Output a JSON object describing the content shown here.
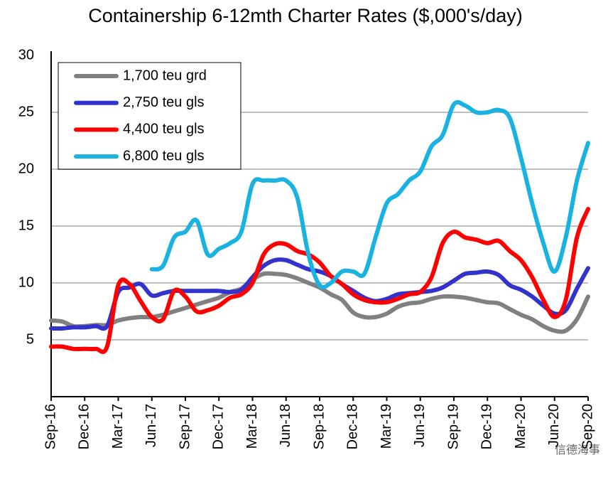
{
  "chart_data": {
    "type": "line",
    "title": "Containership 6-12mth Charter Rates ($,000's/day)",
    "categories": [
      "Sep-16",
      null,
      null,
      "Dec-16",
      null,
      null,
      "Mar-17",
      null,
      null,
      "Jun-17",
      null,
      null,
      "Sep-17",
      null,
      null,
      "Dec-17",
      null,
      null,
      "Mar-18",
      null,
      null,
      "Jun-18",
      null,
      null,
      "Sep-18",
      null,
      null,
      "Dec-18",
      null,
      null,
      "Mar-19",
      null,
      null,
      "Jun-19",
      null,
      null,
      "Sep-19",
      null,
      null,
      "Dec-19",
      null,
      null,
      "Mar-20",
      null,
      null,
      "Jun-20",
      null,
      null,
      "Sep-20"
    ],
    "series": [
      {
        "name": "1,700 teu grd",
        "color": "#808080",
        "values": [
          6.7,
          6.6,
          6.2,
          6.2,
          6.3,
          6.3,
          6.7,
          6.9,
          7.0,
          7.0,
          7.2,
          7.5,
          7.8,
          8.1,
          8.4,
          8.7,
          9.2,
          9.5,
          10.3,
          10.8,
          10.8,
          10.7,
          10.4,
          10.0,
          9.6,
          9.0,
          8.5,
          7.4,
          7.0,
          7.0,
          7.3,
          7.9,
          8.2,
          8.3,
          8.6,
          8.8,
          8.8,
          8.7,
          8.5,
          8.3,
          8.2,
          7.7,
          7.2,
          6.8,
          6.2,
          5.8,
          5.8,
          6.8,
          8.8
        ]
      },
      {
        "name": "2,750 teu gls",
        "color": "#3333cc",
        "values": [
          6.0,
          6.0,
          6.1,
          6.1,
          6.2,
          6.2,
          9.2,
          9.6,
          9.9,
          8.9,
          9.1,
          9.3,
          9.3,
          9.3,
          9.3,
          9.3,
          9.2,
          9.4,
          10.5,
          11.5,
          12.0,
          12.0,
          11.6,
          11.2,
          11.0,
          10.6,
          9.9,
          9.3,
          8.7,
          8.4,
          8.6,
          9.0,
          9.1,
          9.2,
          9.3,
          9.6,
          10.2,
          10.8,
          10.9,
          11.0,
          10.7,
          9.8,
          9.4,
          8.8,
          8.0,
          7.3,
          7.6,
          9.5,
          11.3
        ]
      },
      {
        "name": "4,400 teu gls",
        "color": "#ff0000",
        "values": [
          4.4,
          4.4,
          4.2,
          4.2,
          4.2,
          4.4,
          9.8,
          9.9,
          8.4,
          7.0,
          6.8,
          9.3,
          8.8,
          7.5,
          7.6,
          8.0,
          8.7,
          9.0,
          10.0,
          12.5,
          13.4,
          13.4,
          12.8,
          12.5,
          11.8,
          10.6,
          9.9,
          9.0,
          8.5,
          8.3,
          8.3,
          8.6,
          9.0,
          9.2,
          10.5,
          13.5,
          14.5,
          14.0,
          13.8,
          13.5,
          13.7,
          12.8,
          12.0,
          10.5,
          8.5,
          7.0,
          8.5,
          14.0,
          16.5
        ]
      },
      {
        "name": "6,800 teu gls",
        "color": "#1ab2e0",
        "values": [
          null,
          null,
          null,
          null,
          null,
          null,
          null,
          null,
          null,
          11.2,
          11.5,
          14.0,
          14.5,
          15.5,
          12.5,
          13.0,
          13.5,
          14.5,
          18.7,
          19.0,
          19.0,
          19.0,
          17.5,
          12.5,
          9.8,
          10.0,
          11.0,
          11.0,
          10.8,
          14.0,
          17.0,
          17.8,
          19.0,
          19.8,
          22.0,
          23.0,
          25.7,
          25.6,
          25.0,
          25.0,
          25.2,
          24.5,
          21.0,
          17.0,
          13.5,
          11.0,
          14.0,
          19.0,
          22.3
        ]
      }
    ],
    "ylim": [
      0,
      30
    ],
    "yticks": [
      5,
      10,
      15,
      20,
      25,
      30
    ],
    "grid": true,
    "legend": "upper left",
    "watermark": "信德海事"
  }
}
